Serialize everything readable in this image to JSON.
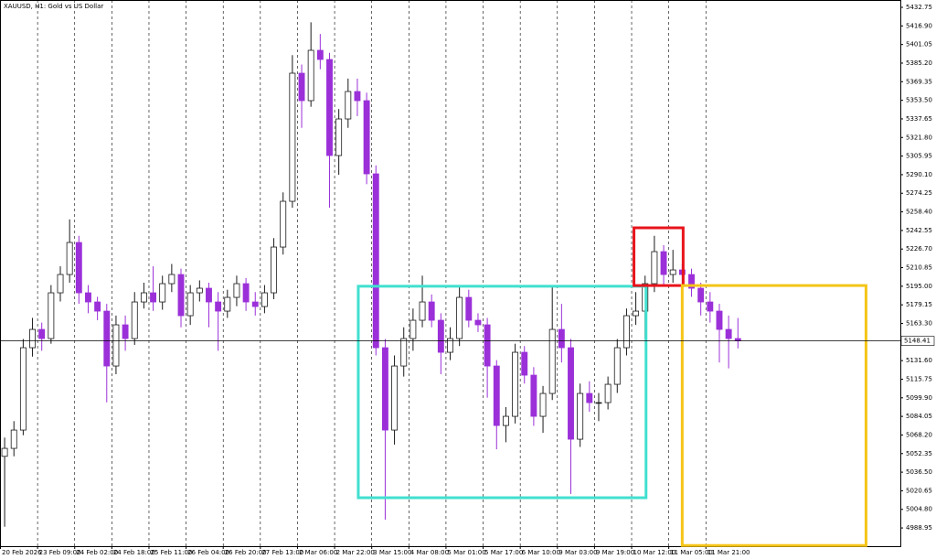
{
  "chart_data": {
    "type": "candlestick",
    "title": "XAUUSD, H1:  Gold vs US Dollar",
    "up_color": "#1a1a1a",
    "down_color": "#9b30d9",
    "grid": true,
    "open": [
      5050,
      5056.8,
      5072.4,
      5142.6,
      5158.2,
      5150.4,
      5189.4,
      5205.0,
      5232.3,
      5189.4,
      5181.6,
      5173.8,
      5127.0,
      5162.1,
      5150.4,
      5181.6,
      5189.4,
      5181.6,
      5197.2,
      5205.0,
      5169.9,
      5189.4,
      5193.3,
      5181.6,
      5173.8,
      5185.5,
      5197.2,
      5181.6,
      5177.7,
      5189.4,
      5228.4,
      5267.4,
      5376.6,
      5353.2,
      5396.1,
      5388.3,
      5306.4,
      5337.6,
      5361.0,
      5353.2,
      5290.8,
      5142.6,
      5072.4,
      5127.0,
      5150.4,
      5166.0,
      5181.6,
      5166.0,
      5138.7,
      5150.4,
      5185.5,
      5166.0,
      5162.1,
      5127.0,
      5076.3,
      5084.1,
      5138.7,
      5119.2,
      5084.1,
      5103.6,
      5158.2,
      5142.6,
      5064.6,
      5103.6,
      5095.8,
      5095.8,
      5111.4,
      5142.6,
      5169.9,
      5173.8,
      5197.2,
      5224.5,
      5205.0,
      5208.9,
      5205.0,
      5193.3,
      5181.6,
      5173.8,
      5158.2,
      5150.4
    ],
    "high": [
      5066,
      5080,
      5150,
      5168,
      5164,
      5196,
      5212,
      5252,
      5238,
      5196,
      5186,
      5180,
      5170,
      5170,
      5190,
      5198,
      5212,
      5204,
      5214,
      5210,
      5196,
      5200,
      5198,
      5190,
      5192,
      5204,
      5202,
      5190,
      5196,
      5236,
      5275,
      5392,
      5384,
      5420,
      5410,
      5394,
      5346,
      5372,
      5372,
      5360,
      5298,
      5150,
      5136,
      5160,
      5176,
      5204,
      5188,
      5172,
      5160,
      5196,
      5192,
      5172,
      5168,
      5132,
      5092,
      5146,
      5144,
      5126,
      5110,
      5196,
      5180,
      5150,
      5112,
      5114,
      5104,
      5118,
      5150,
      5176,
      5190,
      5204,
      5238,
      5230,
      5226,
      5214,
      5210,
      5198,
      5190,
      5180,
      5170,
      5168
    ],
    "low": [
      4990,
      5050,
      5068,
      5135,
      5140,
      5146,
      5182,
      5198,
      5180,
      5172,
      5166,
      5096,
      5120,
      5140,
      5145,
      5176,
      5174,
      5175,
      5190,
      5160,
      5162,
      5182,
      5160,
      5140,
      5168,
      5178,
      5174,
      5170,
      5172,
      5184,
      5222,
      5262,
      5330,
      5348,
      5380,
      5262,
      5290,
      5330,
      5340,
      5282,
      5136,
      4996,
      5060,
      5118,
      5140,
      5160,
      5160,
      5120,
      5132,
      5144,
      5160,
      5156,
      5100,
      5056,
      5062,
      5078,
      5112,
      5076,
      5070,
      5098,
      5130,
      5018,
      5058,
      5088,
      5080,
      5090,
      5104,
      5136,
      5162,
      5150,
      5190,
      5196,
      5198,
      5196,
      5186,
      5170,
      5164,
      5130,
      5125,
      5142
    ],
    "close": [
      5056.8,
      5072.4,
      5142.6,
      5158.2,
      5150.4,
      5189.4,
      5205.0,
      5232.3,
      5189.4,
      5181.6,
      5173.8,
      5127.0,
      5162.1,
      5150.4,
      5181.6,
      5189.4,
      5181.6,
      5197.2,
      5205.0,
      5169.9,
      5189.4,
      5193.3,
      5181.6,
      5173.8,
      5185.5,
      5197.2,
      5181.6,
      5177.7,
      5189.4,
      5228.4,
      5267.4,
      5376.6,
      5353.2,
      5396.1,
      5388.3,
      5306.4,
      5337.6,
      5361.0,
      5353.2,
      5290.8,
      5142.6,
      5072.4,
      5127.0,
      5150.4,
      5166.0,
      5181.6,
      5166.0,
      5138.7,
      5150.4,
      5185.5,
      5166.0,
      5162.1,
      5127.0,
      5076.3,
      5084.1,
      5138.7,
      5119.2,
      5084.1,
      5103.6,
      5158.2,
      5142.6,
      5064.6,
      5103.6,
      5095.8,
      5095.8,
      5111.4,
      5142.6,
      5169.9,
      5173.8,
      5197.2,
      5224.5,
      5205.0,
      5208.9,
      5205.0,
      5193.3,
      5181.6,
      5173.8,
      5158.2,
      5150.4,
      5148.41
    ],
    "current_price": 5148.41,
    "xlim": [
      0,
      97
    ],
    "ylim": [
      4973.4,
      5439.0
    ],
    "yticks": [
      5432.75,
      {
        "value": 5416.9,
        "label": "5416.90"
      },
      5401.05,
      {
        "value": 5385.2,
        "label": "5385.20"
      },
      5369.35,
      {
        "value": 5353.5,
        "label": "5353.50"
      },
      5337.65,
      {
        "value": 5321.8,
        "label": "5321.80"
      },
      5305.95,
      {
        "value": 5290.1,
        "label": "5290.10"
      },
      5274.25,
      {
        "value": 5258.4,
        "label": "5258.40"
      },
      5242.55,
      {
        "value": 5226.7,
        "label": "5226.70"
      },
      5210.85,
      {
        "value": 5195,
        "label": "5195.00"
      },
      5179.15,
      {
        "value": 5163.3,
        "label": "5163.30"
      },
      {
        "value": 5131.6,
        "label": "5131.60"
      },
      5115.75,
      {
        "value": 5099.9,
        "label": "5099.90"
      },
      5084.05,
      {
        "value": 5068.2,
        "label": "5068.20"
      },
      5052.35,
      {
        "value": 5036.5,
        "label": "5036.50"
      },
      5020.65,
      {
        "value": 5004.8,
        "label": "5004.80"
      },
      4988.95
    ],
    "xticks": [
      {
        "value": 0,
        "label": "20 Feb 2026"
      },
      {
        "value": 4,
        "label": "23 Feb 09:00"
      },
      {
        "value": 8,
        "label": "24 Feb 02:00"
      },
      {
        "value": 12,
        "label": "24 Feb 18:00"
      },
      {
        "value": 16,
        "label": "25 Feb 11:00"
      },
      {
        "value": 20,
        "label": "26 Feb 04:00"
      },
      {
        "value": 24,
        "label": "26 Feb 20:00"
      },
      {
        "value": 28,
        "label": "27 Feb 13:00"
      },
      {
        "value": 32,
        "label": "2 Mar 06:00"
      },
      {
        "value": 36,
        "label": "2 Mar 22:00"
      },
      {
        "value": 40,
        "label": "3 Mar 15:00"
      },
      {
        "value": 44,
        "label": "4 Mar 08:00"
      },
      {
        "value": 48,
        "label": "5 Mar 01:00"
      },
      {
        "value": 52,
        "label": "5 Mar 17:00"
      },
      {
        "value": 56,
        "label": "6 Mar 10:00"
      },
      {
        "value": 60,
        "label": "9 Mar 03:00"
      },
      {
        "value": 64,
        "label": "9 Mar 19:00"
      },
      {
        "value": 68,
        "label": "10 Mar 12:00"
      },
      {
        "value": 72,
        "label": "11 Mar 05:00"
      },
      {
        "value": 76,
        "label": "11 Mar 21:00"
      }
    ],
    "rectangles": [
      {
        "color": "#40e0d0",
        "x": [
          38.6,
          69.6
        ],
        "y": [
          5195,
          5014.7
        ]
      },
      {
        "color": "#e8141c",
        "x": [
          68.3,
          73.6
        ],
        "y": [
          5244.8,
          5195.6
        ]
      },
      {
        "color": "#f5c518",
        "x": [
          73.5,
          93.3
        ],
        "y": [
          5195.6,
          4974
        ]
      }
    ]
  }
}
